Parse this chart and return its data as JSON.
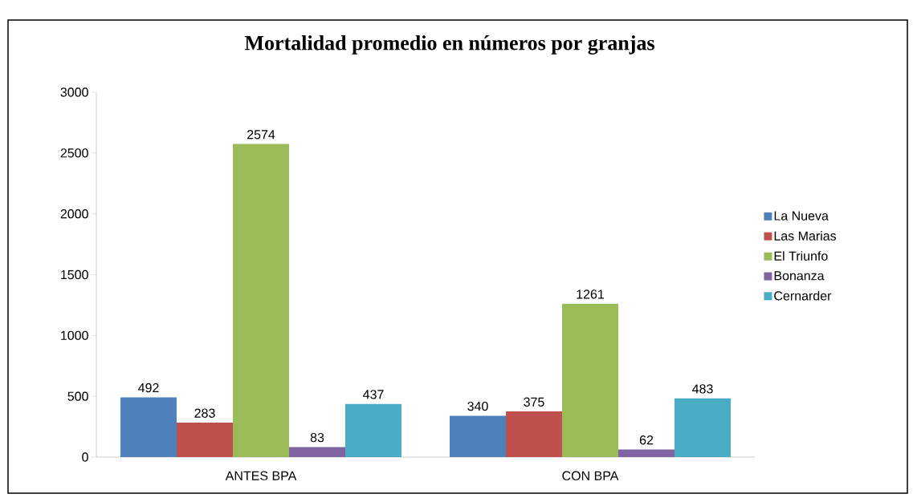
{
  "chart_data": {
    "type": "bar",
    "title": "Mortalidad promedio en números por granjas",
    "categories": [
      "ANTES BPA",
      "CON BPA"
    ],
    "series": [
      {
        "name": "La Nueva",
        "color": "#4f81bd",
        "values": [
          492,
          340
        ]
      },
      {
        "name": "Las Marias",
        "color": "#c0504d",
        "values": [
          283,
          375
        ]
      },
      {
        "name": "El Triunfo",
        "color": "#9bbb59",
        "values": [
          2574,
          1261
        ]
      },
      {
        "name": "Bonanza",
        "color": "#8064a2",
        "values": [
          83,
          62
        ]
      },
      {
        "name": "Cernarder",
        "color": "#4bacc6",
        "values": [
          437,
          483
        ]
      }
    ],
    "ylim": [
      0,
      3000
    ],
    "yticks": [
      0,
      500,
      1000,
      1500,
      2000,
      2500,
      3000
    ],
    "data_labels": true,
    "legend": "right",
    "grid": false
  }
}
